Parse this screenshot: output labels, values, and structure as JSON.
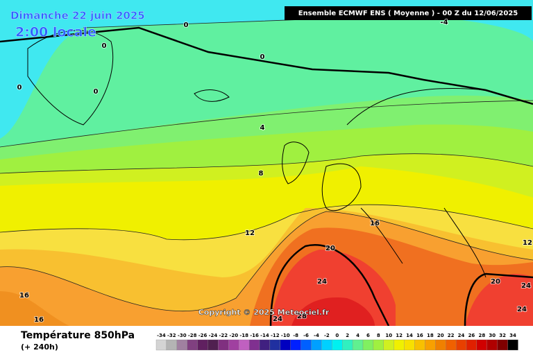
{
  "header": {
    "date": "Dimanche 22 juin 2025",
    "time": "2:00 locale",
    "model": "Ensemble ECMWF ENS  ( Moyenne )  -  00 Z du 12/06/2025"
  },
  "contour_labels": [
    "0",
    "0",
    "0",
    "0",
    "0",
    "-4",
    "4",
    "8",
    "12",
    "16",
    "12",
    "20",
    "24",
    "20",
    "24",
    "24",
    "16",
    "16",
    "24",
    "28"
  ],
  "copyright": "Copyright © 2025 Meteociel.fr",
  "footer": {
    "title": "Température 850hPa",
    "lead": "(+ 240h)"
  },
  "legend": {
    "labels": [
      -34,
      -32,
      -30,
      -28,
      -26,
      -24,
      -22,
      -20,
      -18,
      -16,
      -14,
      -12,
      -10,
      -8,
      -6,
      -4,
      -2,
      0,
      2,
      4,
      6,
      8,
      10,
      12,
      14,
      16,
      18,
      20,
      22,
      24,
      26,
      28,
      30,
      32,
      34
    ],
    "colors": [
      "#d4d4d4",
      "#b4b4b4",
      "#a080a0",
      "#804080",
      "#602060",
      "#502050",
      "#803080",
      "#a040a0",
      "#c060c0",
      "#803090",
      "#402080",
      "#2030a0",
      "#0000c0",
      "#0020ff",
      "#0060ff",
      "#00a0ff",
      "#00d0ff",
      "#00f0f0",
      "#30f0c0",
      "#60f090",
      "#80f060",
      "#a0f040",
      "#d0f020",
      "#f0f000",
      "#f8e000",
      "#f8c000",
      "#f8a000",
      "#f08000",
      "#f06000",
      "#e84000",
      "#e02000",
      "#d00000",
      "#b00000",
      "#800000",
      "#000000"
    ]
  }
}
